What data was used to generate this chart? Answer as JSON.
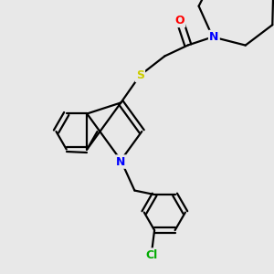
{
  "background_color": "#e8e8e8",
  "atom_colors": {
    "O": "#ff0000",
    "N": "#0000ff",
    "S": "#cccc00",
    "Cl": "#00aa00",
    "C": "#000000"
  },
  "bond_color": "#000000",
  "bond_lw": 1.6,
  "figsize": [
    3.0,
    3.0
  ],
  "dpi": 100,
  "xlim": [
    0,
    10
  ],
  "ylim": [
    0,
    10
  ]
}
